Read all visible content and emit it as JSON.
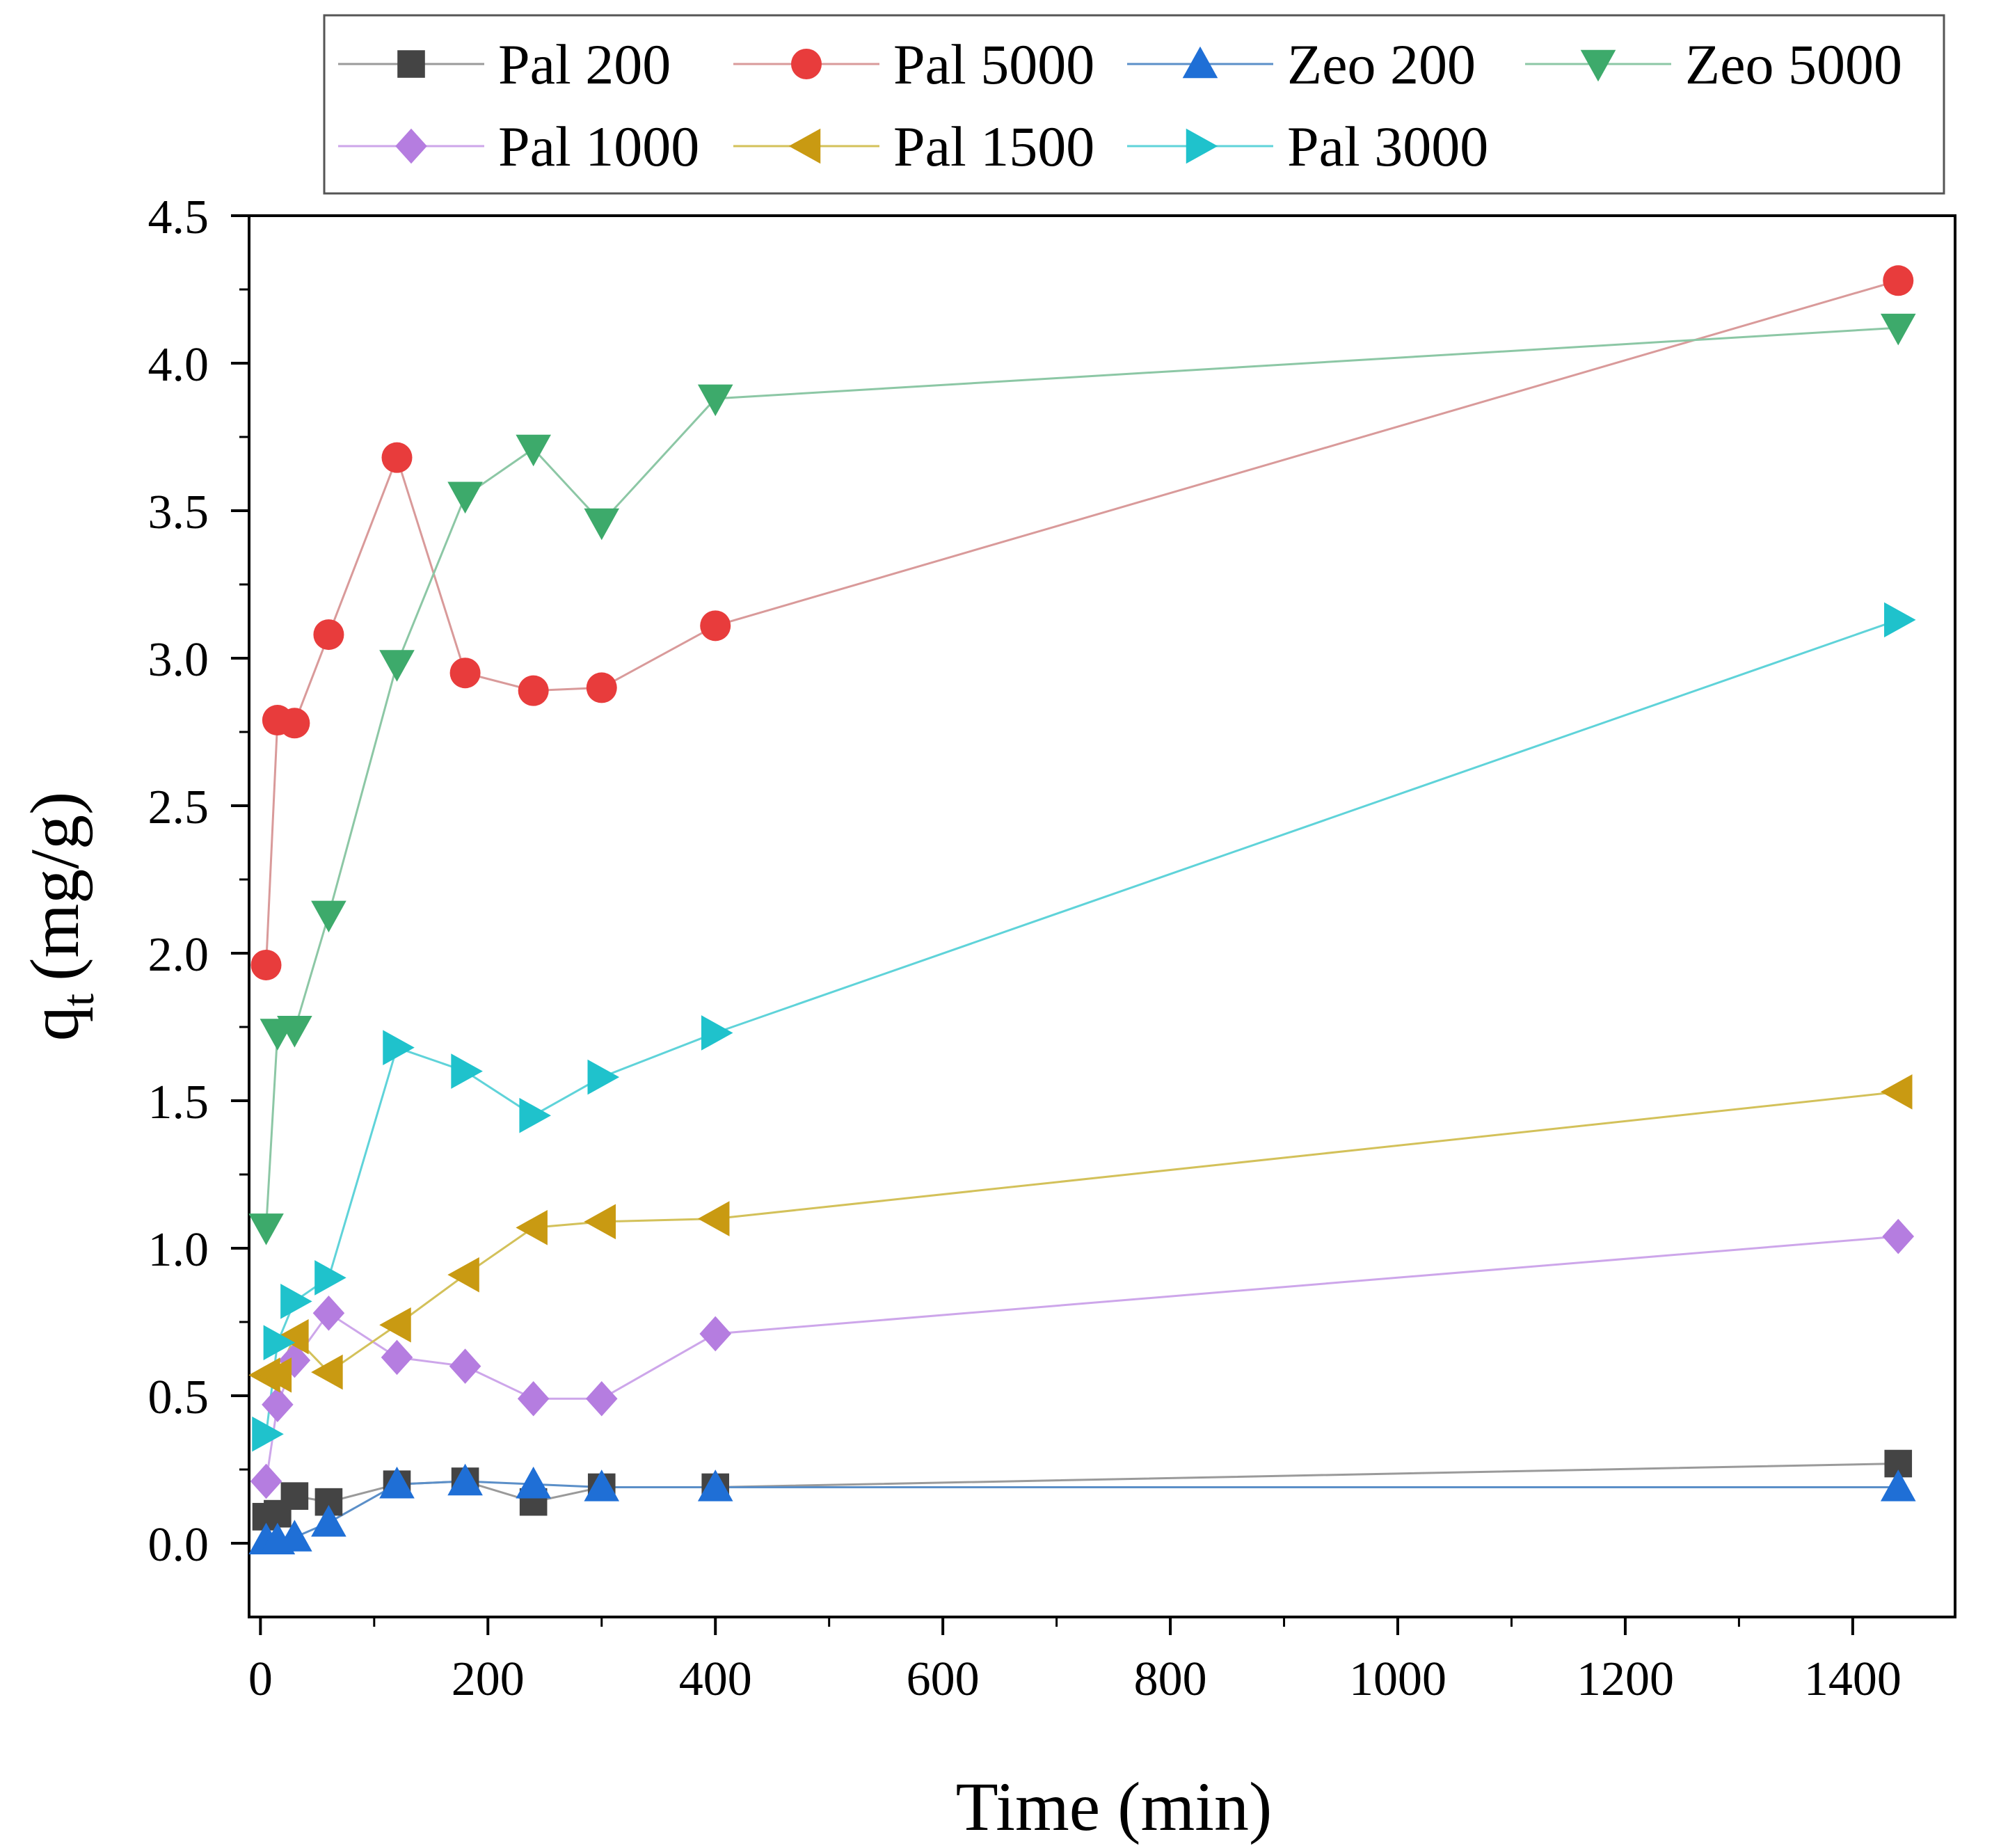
{
  "chart_data": {
    "type": "line",
    "xlabel": "Time (min)",
    "ylabel_main": "q",
    "ylabel_sub": "t",
    "ylabel_unit": "(mg/g)",
    "xlim": [
      -10,
      1490
    ],
    "ylim": [
      -0.25,
      4.5
    ],
    "xticks": [
      0,
      200,
      400,
      600,
      800,
      1000,
      1200,
      1400
    ],
    "xtick_labels": [
      "0",
      "200",
      "400",
      "600",
      "800",
      "1000",
      "1200",
      "1400"
    ],
    "yticks": [
      0.0,
      0.5,
      1.0,
      1.5,
      2.0,
      2.5,
      3.0,
      3.5,
      4.0,
      4.5
    ],
    "ytick_labels": [
      "0.0",
      "0.5",
      "1.0",
      "1.5",
      "2.0",
      "2.5",
      "3.0",
      "3.5",
      "4.0",
      "4.5"
    ],
    "x": [
      5,
      15,
      30,
      60,
      120,
      180,
      240,
      300,
      400,
      1440
    ],
    "series": [
      {
        "name": "Pal 200",
        "marker": "square",
        "color": "#444444",
        "line": "#9a9a9a",
        "values": [
          0.09,
          0.1,
          0.16,
          0.14,
          0.2,
          0.21,
          0.14,
          0.19,
          0.19,
          0.27
        ]
      },
      {
        "name": "Pal 5000",
        "marker": "circle",
        "color": "#e83c3c",
        "line": "#d99a9a",
        "values": [
          1.96,
          2.79,
          2.78,
          3.08,
          3.68,
          2.95,
          2.89,
          2.9,
          3.11,
          4.28
        ]
      },
      {
        "name": "Zeo 200",
        "marker": "triangle-up",
        "color": "#1f6fd6",
        "line": "#5b8fc8",
        "values": [
          0.01,
          0.01,
          0.02,
          0.07,
          0.2,
          0.21,
          0.2,
          0.19,
          0.19,
          0.19
        ]
      },
      {
        "name": "Zeo 5000",
        "marker": "triangle-down",
        "color": "#3daa6b",
        "line": "#8cc7a5",
        "values": [
          1.07,
          1.73,
          1.74,
          2.13,
          2.98,
          3.55,
          3.71,
          3.46,
          3.88,
          4.12
        ]
      },
      {
        "name": "Pal 1000",
        "marker": "diamond",
        "color": "#b57de0",
        "line": "#cda6ea",
        "values": [
          0.21,
          0.47,
          0.62,
          0.78,
          0.63,
          0.6,
          0.49,
          0.49,
          0.71,
          1.04
        ]
      },
      {
        "name": "Pal 1500",
        "marker": "triangle-left",
        "color": "#c99a12",
        "line": "#d3c15a",
        "values": [
          0.57,
          0.57,
          0.7,
          0.58,
          0.74,
          0.91,
          1.07,
          1.09,
          1.1,
          1.53
        ]
      },
      {
        "name": "Pal 3000",
        "marker": "triangle-right",
        "color": "#1fc2cc",
        "line": "#5fd3d9",
        "values": [
          0.37,
          0.68,
          0.82,
          0.9,
          1.68,
          1.6,
          1.45,
          1.58,
          1.73,
          3.13
        ]
      }
    ],
    "legend_position": "top",
    "grid": false
  }
}
